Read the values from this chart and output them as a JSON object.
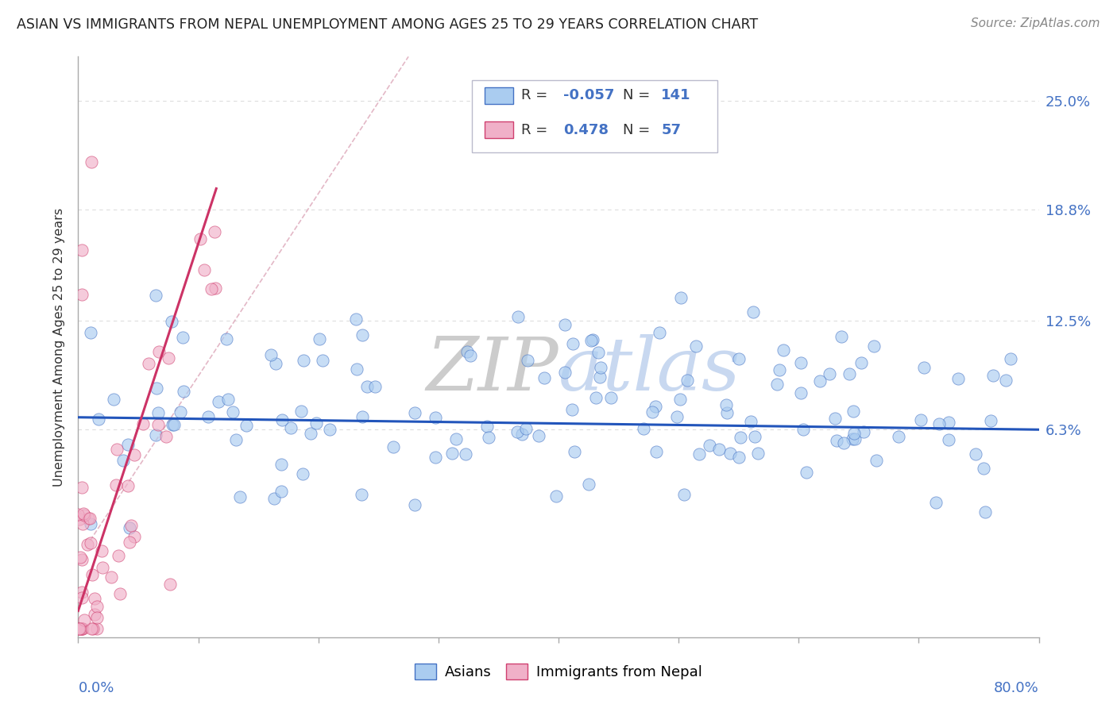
{
  "title": "ASIAN VS IMMIGRANTS FROM NEPAL UNEMPLOYMENT AMONG AGES 25 TO 29 YEARS CORRELATION CHART",
  "source": "Source: ZipAtlas.com",
  "ylabel": "Unemployment Among Ages 25 to 29 years",
  "ytick_vals": [
    0.063,
    0.125,
    0.188,
    0.25
  ],
  "ytick_labels": [
    "6.3%",
    "12.5%",
    "18.8%",
    "25.0%"
  ],
  "xmin": 0.0,
  "xmax": 0.8,
  "ymin": -0.055,
  "ymax": 0.275,
  "asian_color": "#aaccf0",
  "asian_edge": "#4472c4",
  "nepal_color": "#f0b0c8",
  "nepal_edge": "#d04070",
  "asian_trend_color": "#2255bb",
  "nepal_trend_color": "#cc3366",
  "diag_color": "#e0b0c0",
  "grid_color": "#dddddd",
  "watermark_zip_color": "#d8d8d8",
  "watermark_atlas_color": "#c8d8f0",
  "legend_box_edge": "#aaaacc",
  "legend_r_color": "#333333",
  "legend_val_color": "#4472c4",
  "bottom_label_color": "#4472c4",
  "title_color": "#222222",
  "source_color": "#888888",
  "ylabel_color": "#333333",
  "right_tick_color": "#4472c4"
}
